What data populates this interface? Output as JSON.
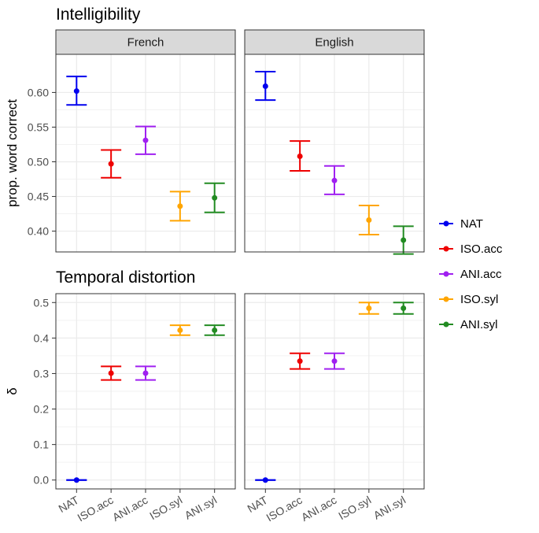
{
  "chart_data": [
    {
      "type": "scatter",
      "title": "Intelligibility",
      "ylabel": "prop. word correct",
      "xlabel": "",
      "ylim": [
        0.37,
        0.655
      ],
      "yticks": [
        "0.40",
        "0.45",
        "0.50",
        "0.55",
        "0.60"
      ],
      "grid": true,
      "facets": [
        "French",
        "English"
      ],
      "categories": [
        "NAT",
        "ISO.acc",
        "ANI.acc",
        "ISO.syl",
        "ANI.syl"
      ],
      "series": [
        {
          "facet": "French",
          "mean": [
            0.602,
            0.497,
            0.531,
            0.436,
            0.448
          ],
          "lower": [
            0.582,
            0.477,
            0.511,
            0.415,
            0.427
          ],
          "upper": [
            0.623,
            0.517,
            0.551,
            0.457,
            0.469
          ]
        },
        {
          "facet": "English",
          "mean": [
            0.609,
            0.508,
            0.473,
            0.416,
            0.387
          ],
          "lower": [
            0.589,
            0.487,
            0.453,
            0.395,
            0.367
          ],
          "upper": [
            0.63,
            0.53,
            0.494,
            0.437,
            0.407
          ]
        }
      ]
    },
    {
      "type": "scatter",
      "title": "Temporal distortion",
      "ylabel": "δ",
      "xlabel": "",
      "ylim": [
        -0.025,
        0.525
      ],
      "yticks": [
        "0.0",
        "0.1",
        "0.2",
        "0.3",
        "0.4",
        "0.5"
      ],
      "grid": true,
      "facets": [
        "French",
        "English"
      ],
      "categories": [
        "NAT",
        "ISO.acc",
        "ANI.acc",
        "ISO.syl",
        "ANI.syl"
      ],
      "series": [
        {
          "facet": "French",
          "mean": [
            0.0,
            0.301,
            0.301,
            0.422,
            0.422
          ],
          "lower": [
            0.0,
            0.282,
            0.282,
            0.408,
            0.408
          ],
          "upper": [
            0.0,
            0.32,
            0.32,
            0.436,
            0.436
          ]
        },
        {
          "facet": "English",
          "mean": [
            0.0,
            0.335,
            0.335,
            0.484,
            0.484
          ],
          "lower": [
            0.0,
            0.313,
            0.313,
            0.468,
            0.468
          ],
          "upper": [
            0.0,
            0.357,
            0.357,
            0.5,
            0.5
          ]
        }
      ]
    }
  ],
  "legend": {
    "placement": "right",
    "entries": [
      "NAT",
      "ISO.acc",
      "ANI.acc",
      "ISO.syl",
      "ANI.syl"
    ],
    "colors": [
      "#0000ee",
      "#ee0000",
      "#a020f0",
      "#ffa500",
      "#228b22"
    ]
  }
}
